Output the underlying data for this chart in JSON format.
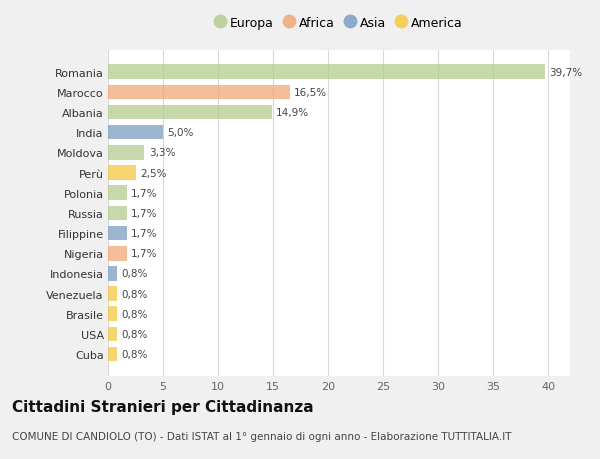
{
  "countries": [
    "Romania",
    "Marocco",
    "Albania",
    "India",
    "Moldova",
    "Perù",
    "Polonia",
    "Russia",
    "Filippine",
    "Nigeria",
    "Indonesia",
    "Venezuela",
    "Brasile",
    "USA",
    "Cuba"
  ],
  "values": [
    39.7,
    16.5,
    14.9,
    5.0,
    3.3,
    2.5,
    1.7,
    1.7,
    1.7,
    1.7,
    0.8,
    0.8,
    0.8,
    0.8,
    0.8
  ],
  "labels": [
    "39,7%",
    "16,5%",
    "14,9%",
    "5,0%",
    "3,3%",
    "2,5%",
    "1,7%",
    "1,7%",
    "1,7%",
    "1,7%",
    "0,8%",
    "0,8%",
    "0,8%",
    "0,8%",
    "0,8%"
  ],
  "continents": [
    "Europa",
    "Africa",
    "Europa",
    "Asia",
    "Europa",
    "America",
    "Europa",
    "Europa",
    "Asia",
    "Africa",
    "Asia",
    "America",
    "America",
    "America",
    "America"
  ],
  "continent_colors": {
    "Europa": "#b5cc8e",
    "Africa": "#f0a877",
    "Asia": "#7b9ec4",
    "America": "#f5c842"
  },
  "legend_order": [
    "Europa",
    "Africa",
    "Asia",
    "America"
  ],
  "xlim": [
    0,
    42
  ],
  "xticks": [
    0,
    5,
    10,
    15,
    20,
    25,
    30,
    35,
    40
  ],
  "title": "Cittadini Stranieri per Cittadinanza",
  "subtitle": "COMUNE DI CANDIOLO (TO) - Dati ISTAT al 1° gennaio di ogni anno - Elaborazione TUTTITALIA.IT",
  "background_color": "#f0f0f0",
  "plot_bg_color": "#ffffff",
  "grid_color": "#d8d8d8",
  "title_fontsize": 11,
  "subtitle_fontsize": 7.5,
  "label_fontsize": 7.5,
  "ytick_fontsize": 8,
  "xtick_fontsize": 8,
  "bar_height": 0.72
}
